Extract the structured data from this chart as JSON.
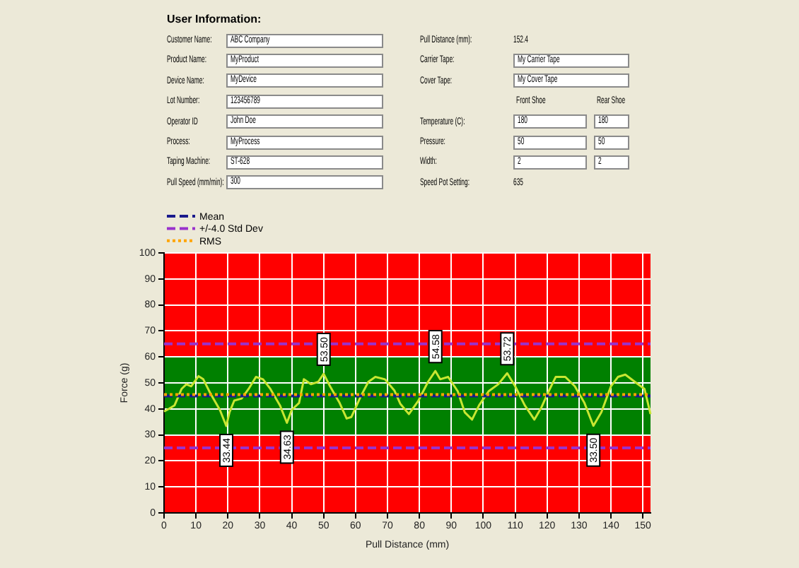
{
  "chart_data": {
    "type": "line",
    "title": "User Information:",
    "xlabel": "Pull Distance (mm)",
    "ylabel": "Force (g)",
    "x": [
      0,
      1.5,
      3.3,
      5.5,
      7,
      8.5,
      10.8,
      12.3,
      14.5,
      17.5,
      19.5,
      20.5,
      22,
      24.3,
      26.5,
      28.8,
      31,
      33.3,
      36.3,
      38.5,
      40,
      42.3,
      43.8,
      46,
      48.3,
      50,
      52,
      55,
      57.2,
      58.7,
      61.7,
      64,
      66.2,
      69.2,
      72.2,
      74,
      76.7,
      79.7,
      82.7,
      85,
      86.5,
      89,
      92,
      94.2,
      96.5,
      98.7,
      101.7,
      104.7,
      107.5,
      110,
      113,
      116,
      118.2,
      120.5,
      122.7,
      125.7,
      128.7,
      131.7,
      134.5,
      137,
      140,
      142.2,
      144.5,
      147.5,
      150.5,
      152.4
    ],
    "values": [
      39,
      40,
      41.4,
      47.7,
      49.5,
      48.7,
      52.6,
      51.4,
      46,
      39.6,
      33.44,
      38.7,
      43.2,
      44,
      47.7,
      52.3,
      51.4,
      47.7,
      41.4,
      34.63,
      39.6,
      42.3,
      51.4,
      49.5,
      50.4,
      53.5,
      48.7,
      42.3,
      36.3,
      36.9,
      45,
      50.4,
      52.3,
      51.4,
      47,
      42,
      38,
      43.2,
      50.4,
      54.58,
      51.4,
      52.3,
      46.8,
      38.7,
      35.9,
      41.4,
      46.8,
      49.5,
      53.72,
      48.7,
      41.4,
      35.9,
      40.5,
      46.8,
      52.3,
      52.3,
      48.7,
      42.3,
      33.5,
      38.7,
      48.7,
      52.3,
      53.2,
      50.4,
      47.7,
      38
    ],
    "color": "#c8e632",
    "marker": "none",
    "line_style": "solid",
    "xlim": [
      0,
      152.4
    ],
    "xticks": [
      0,
      10,
      20,
      30,
      40,
      50,
      60,
      70,
      80,
      90,
      100,
      110,
      120,
      130,
      140,
      150
    ],
    "ylim": [
      0,
      100
    ],
    "yticks": [
      0,
      10,
      20,
      30,
      40,
      50,
      60,
      70,
      80,
      90,
      100
    ],
    "grid": true,
    "legend": "top left",
    "bands": [
      {
        "axis": "y",
        "from": 60,
        "to": 100,
        "color": "#ff0000"
      },
      {
        "axis": "y",
        "from": 30,
        "to": 60,
        "color": "#008000"
      },
      {
        "axis": "y",
        "from": 0,
        "to": 30,
        "color": "#ff0000"
      }
    ],
    "ref_lines": [
      {
        "axis": "y",
        "value": 45,
        "label": "Mean",
        "color": "#1a1a8c",
        "line_style": "dashed"
      },
      {
        "axis": "y",
        "value": 65,
        "label": "+/-4.0 Std Dev",
        "color": "#9932cc",
        "line_style": "dashed"
      },
      {
        "axis": "y",
        "value": 25,
        "color": "#9932cc",
        "line_style": "dashed"
      },
      {
        "axis": "y",
        "value": 45.5,
        "label": "RMS",
        "color": "#ffa500",
        "line_style": "dotted"
      }
    ],
    "annotations": [
      "Customer Name:",
      "ABC Company",
      "Product Name:",
      "MyProduct",
      "Device Name:",
      "MyDevice",
      "Lot Number:",
      "123456789",
      "Operator ID",
      "John Doe",
      "Process:",
      "MyProcess",
      "Taping Machine:",
      "ST-628",
      "Pull Speed (mm/min):",
      "300",
      "Pull Distance (mm):",
      "152.4",
      "Carrier Tape:",
      "My Carrier Tape",
      "Cover Tape:",
      "My Cover Tape",
      "Front Shoe",
      "Rear Shoe",
      "Temperature (C):",
      "180",
      "180",
      "Pressure:",
      "50",
      "50",
      "Width:",
      "2",
      "2",
      "Speed Pot Setting:",
      "635",
      {
        "text": "33.44",
        "x": 19.5,
        "y": 33.44
      },
      {
        "text": "34.63",
        "x": 38.5,
        "y": 34.63
      },
      {
        "text": "53.50",
        "x": 50,
        "y": 53.5
      },
      {
        "text": "54.58",
        "x": 85,
        "y": 54.58
      },
      {
        "text": "53.72",
        "x": 107.5,
        "y": 53.72
      },
      {
        "text": "33.50",
        "x": 134.5,
        "y": 33.5
      }
    ]
  }
}
